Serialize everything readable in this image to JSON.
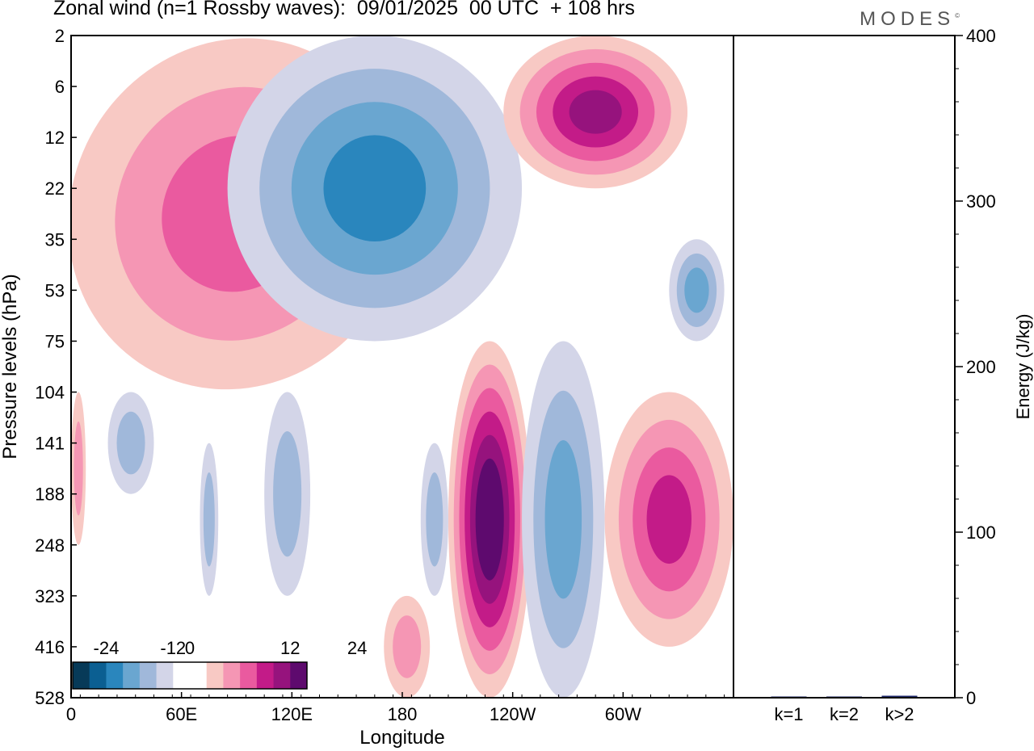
{
  "title": "Zonal wind (n=1 Rossby waves):  09/01/2025  00 UTC  + 108 hrs",
  "brand": "MODES",
  "brand_mark": "©",
  "colors": {
    "neg": [
      "#073a58",
      "#0b5f92",
      "#2a86bd",
      "#6aa6d0",
      "#a0b8da",
      "#d3d5e8"
    ],
    "zero": "#ffffff",
    "pos": [
      "#f8c9c4",
      "#f596b4",
      "#ea5a9f",
      "#c31b88",
      "#96137d",
      "#5e0a6e"
    ],
    "bar": "#1f2a6e"
  },
  "chart_data": [
    {
      "type": "heatmap",
      "title": "Zonal wind (n=1 Rossby waves):  09/01/2025  00 UTC  + 108 hrs",
      "xlabel": "Longitude",
      "ylabel": "Pressure levels (hPa)",
      "x_ticks": [
        "0",
        "60E",
        "120E",
        "180",
        "120W",
        "60W"
      ],
      "y_ticks": [
        "2",
        "6",
        "12",
        "22",
        "35",
        "53",
        "75",
        "104",
        "141",
        "188",
        "248",
        "323",
        "416",
        "528"
      ],
      "colorbar": {
        "tick_labels": [
          "-24",
          "-12",
          "0",
          "12",
          "24"
        ],
        "levels": [
          -27,
          -24,
          -21,
          -18,
          -15,
          -12,
          -9,
          -6,
          -3,
          3,
          6,
          9,
          12,
          15,
          18,
          21,
          24,
          27
        ]
      },
      "features": [
        {
          "sign": "positive",
          "lon_range": [
            0,
            180
          ],
          "level_range": [
            "2",
            "104"
          ],
          "peak": 9,
          "note": "tilted band"
        },
        {
          "sign": "negative",
          "lon_range": [
            85,
            245
          ],
          "level_range": [
            "2",
            "75"
          ],
          "peak": -12
        },
        {
          "sign": "positive",
          "lon_range": [
            235,
            335
          ],
          "level_range": [
            "2",
            "22"
          ],
          "peak": 15
        },
        {
          "sign": "positive",
          "lon_range": [
            205,
            250
          ],
          "level_range": [
            "75",
            "528"
          ],
          "peak": 21
        },
        {
          "sign": "negative",
          "lon_range": [
            245,
            290
          ],
          "level_range": [
            "75",
            "528"
          ],
          "peak": -9
        },
        {
          "sign": "positive",
          "lon_range": [
            290,
            360
          ],
          "level_range": [
            "104",
            "416"
          ],
          "peak": 12
        },
        {
          "sign": "negative",
          "lon_range": [
            20,
            45
          ],
          "level_range": [
            "104",
            "188"
          ],
          "peak": -6
        },
        {
          "sign": "negative",
          "lon_range": [
            70,
            80
          ],
          "level_range": [
            "141",
            "323"
          ],
          "peak": -6
        },
        {
          "sign": "negative",
          "lon_range": [
            105,
            130
          ],
          "level_range": [
            "104",
            "323"
          ],
          "peak": -6
        },
        {
          "sign": "negative",
          "lon_range": [
            190,
            205
          ],
          "level_range": [
            "141",
            "323"
          ],
          "peak": -6
        },
        {
          "sign": "negative",
          "lon_range": [
            325,
            355
          ],
          "level_range": [
            "35",
            "75"
          ],
          "peak": -9
        },
        {
          "sign": "positive",
          "lon_range": [
            0,
            8
          ],
          "level_range": [
            "104",
            "248"
          ],
          "peak": 6
        },
        {
          "sign": "positive",
          "lon_range": [
            170,
            195
          ],
          "level_range": [
            "323",
            "528"
          ],
          "peak": 6
        }
      ]
    },
    {
      "type": "bar",
      "categories": [
        "k=1",
        "k=2",
        "k>2"
      ],
      "values": [
        0.3,
        0.6,
        1.2
      ],
      "ylabel": "Energy (J/kg)",
      "ylim": [
        0,
        400
      ],
      "y_ticks": [
        "0",
        "100",
        "200",
        "300",
        "400"
      ]
    }
  ]
}
